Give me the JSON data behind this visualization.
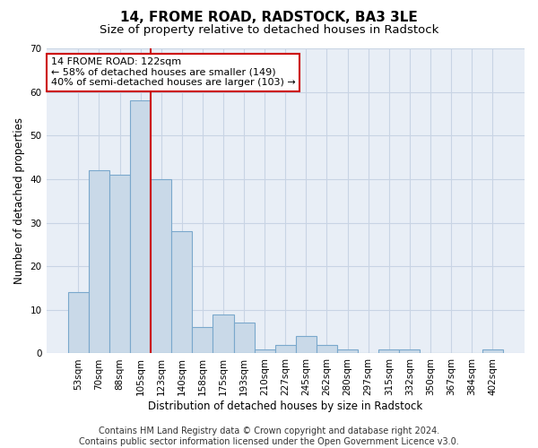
{
  "title": "14, FROME ROAD, RADSTOCK, BA3 3LE",
  "subtitle": "Size of property relative to detached houses in Radstock",
  "xlabel": "Distribution of detached houses by size in Radstock",
  "ylabel": "Number of detached properties",
  "categories": [
    "53sqm",
    "70sqm",
    "88sqm",
    "105sqm",
    "123sqm",
    "140sqm",
    "158sqm",
    "175sqm",
    "193sqm",
    "210sqm",
    "227sqm",
    "245sqm",
    "262sqm",
    "280sqm",
    "297sqm",
    "315sqm",
    "332sqm",
    "350sqm",
    "367sqm",
    "384sqm",
    "402sqm"
  ],
  "values": [
    14,
    42,
    41,
    58,
    40,
    28,
    6,
    9,
    7,
    1,
    2,
    4,
    2,
    1,
    0,
    1,
    1,
    0,
    0,
    0,
    1
  ],
  "bar_color": "#c9d9e8",
  "bar_edge_color": "#7aa8cc",
  "bar_linewidth": 0.8,
  "marker_index": 4,
  "marker_color": "#cc0000",
  "ylim": [
    0,
    70
  ],
  "yticks": [
    0,
    10,
    20,
    30,
    40,
    50,
    60,
    70
  ],
  "grid_color": "#c8d4e4",
  "background_color": "#e8eef6",
  "annotation_text": "14 FROME ROAD: 122sqm\n← 58% of detached houses are smaller (149)\n40% of semi-detached houses are larger (103) →",
  "annotation_box_color": "#ffffff",
  "annotation_box_edge": "#cc0000",
  "footer_line1": "Contains HM Land Registry data © Crown copyright and database right 2024.",
  "footer_line2": "Contains public sector information licensed under the Open Government Licence v3.0.",
  "title_fontsize": 11,
  "subtitle_fontsize": 9.5,
  "axis_label_fontsize": 8.5,
  "tick_fontsize": 7.5,
  "footer_fontsize": 7,
  "annotation_fontsize": 8
}
